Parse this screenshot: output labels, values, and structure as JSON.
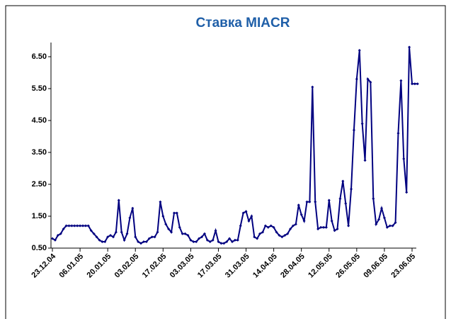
{
  "chart_data": {
    "type": "line",
    "title": "Ставка MIACR",
    "categories": [
      "23.12.04",
      null,
      null,
      null,
      null,
      null,
      null,
      null,
      null,
      null,
      "06.01.05",
      null,
      null,
      null,
      null,
      null,
      null,
      null,
      null,
      null,
      "20.01.05",
      null,
      null,
      null,
      null,
      null,
      null,
      null,
      null,
      null,
      "03.02.05",
      null,
      null,
      null,
      null,
      null,
      null,
      null,
      null,
      null,
      "17.02.05",
      null,
      null,
      null,
      null,
      null,
      null,
      null,
      null,
      null,
      "03.03.05",
      null,
      null,
      null,
      null,
      null,
      null,
      null,
      null,
      null,
      "17.03.05",
      null,
      null,
      null,
      null,
      null,
      null,
      null,
      null,
      null,
      "31.03.05",
      null,
      null,
      null,
      null,
      null,
      null,
      null,
      null,
      null,
      "14.04.05",
      null,
      null,
      null,
      null,
      null,
      null,
      null,
      null,
      null,
      "28.04.05",
      null,
      null,
      null,
      null,
      null,
      null,
      null,
      null,
      null,
      "12.05.05",
      null,
      null,
      null,
      null,
      null,
      null,
      null,
      null,
      null,
      "26.05.05",
      null,
      null,
      null,
      null,
      null,
      null,
      null,
      null,
      null,
      "09.06.05",
      null,
      null,
      null,
      null,
      null,
      null,
      null,
      null,
      null,
      "23.06.05",
      null,
      null
    ],
    "series": [
      {
        "name": "MIACR",
        "color": "#000080",
        "values": [
          0.8,
          0.75,
          0.9,
          0.95,
          1.1,
          1.2,
          1.2,
          1.2,
          1.2,
          1.2,
          1.2,
          1.2,
          1.2,
          1.2,
          1.05,
          0.95,
          0.85,
          0.75,
          0.7,
          0.7,
          0.85,
          0.9,
          0.85,
          1.0,
          2.0,
          1.0,
          0.75,
          0.95,
          1.45,
          1.75,
          0.85,
          0.7,
          0.65,
          0.7,
          0.7,
          0.8,
          0.85,
          0.85,
          1.0,
          1.95,
          1.5,
          1.25,
          1.1,
          1.0,
          1.6,
          1.6,
          1.15,
          0.95,
          0.95,
          0.9,
          0.75,
          0.7,
          0.7,
          0.8,
          0.85,
          0.95,
          0.75,
          0.7,
          0.75,
          1.05,
          0.7,
          0.65,
          0.65,
          0.7,
          0.8,
          0.7,
          0.75,
          0.75,
          1.2,
          1.6,
          1.65,
          1.35,
          1.5,
          0.85,
          0.8,
          0.95,
          1.0,
          1.2,
          1.15,
          1.2,
          1.15,
          1.0,
          0.9,
          0.85,
          0.9,
          0.95,
          1.1,
          1.2,
          1.25,
          1.85,
          1.55,
          1.35,
          1.95,
          1.95,
          5.55,
          1.95,
          1.1,
          1.15,
          1.15,
          1.15,
          2.0,
          1.35,
          1.05,
          1.1,
          2.05,
          2.6,
          1.9,
          1.2,
          2.35,
          4.2,
          5.8,
          6.7,
          4.4,
          3.25,
          5.8,
          5.7,
          2.05,
          1.25,
          1.4,
          1.75,
          1.45,
          1.15,
          1.2,
          1.2,
          1.3,
          4.1,
          5.75,
          3.3,
          2.25,
          6.8,
          5.65,
          5.65,
          5.65
        ]
      }
    ],
    "ylim": [
      0.5,
      7.0
    ],
    "yticks": [
      {
        "value": 0.5,
        "label": "0.50"
      },
      {
        "value": 1.5,
        "label": "1.50"
      },
      {
        "value": 2.5,
        "label": "2.50"
      },
      {
        "value": 3.5,
        "label": "3.50"
      },
      {
        "value": 4.5,
        "label": "4.50"
      },
      {
        "value": 5.5,
        "label": "5.50"
      },
      {
        "value": 6.5,
        "label": "6.50"
      }
    ]
  }
}
